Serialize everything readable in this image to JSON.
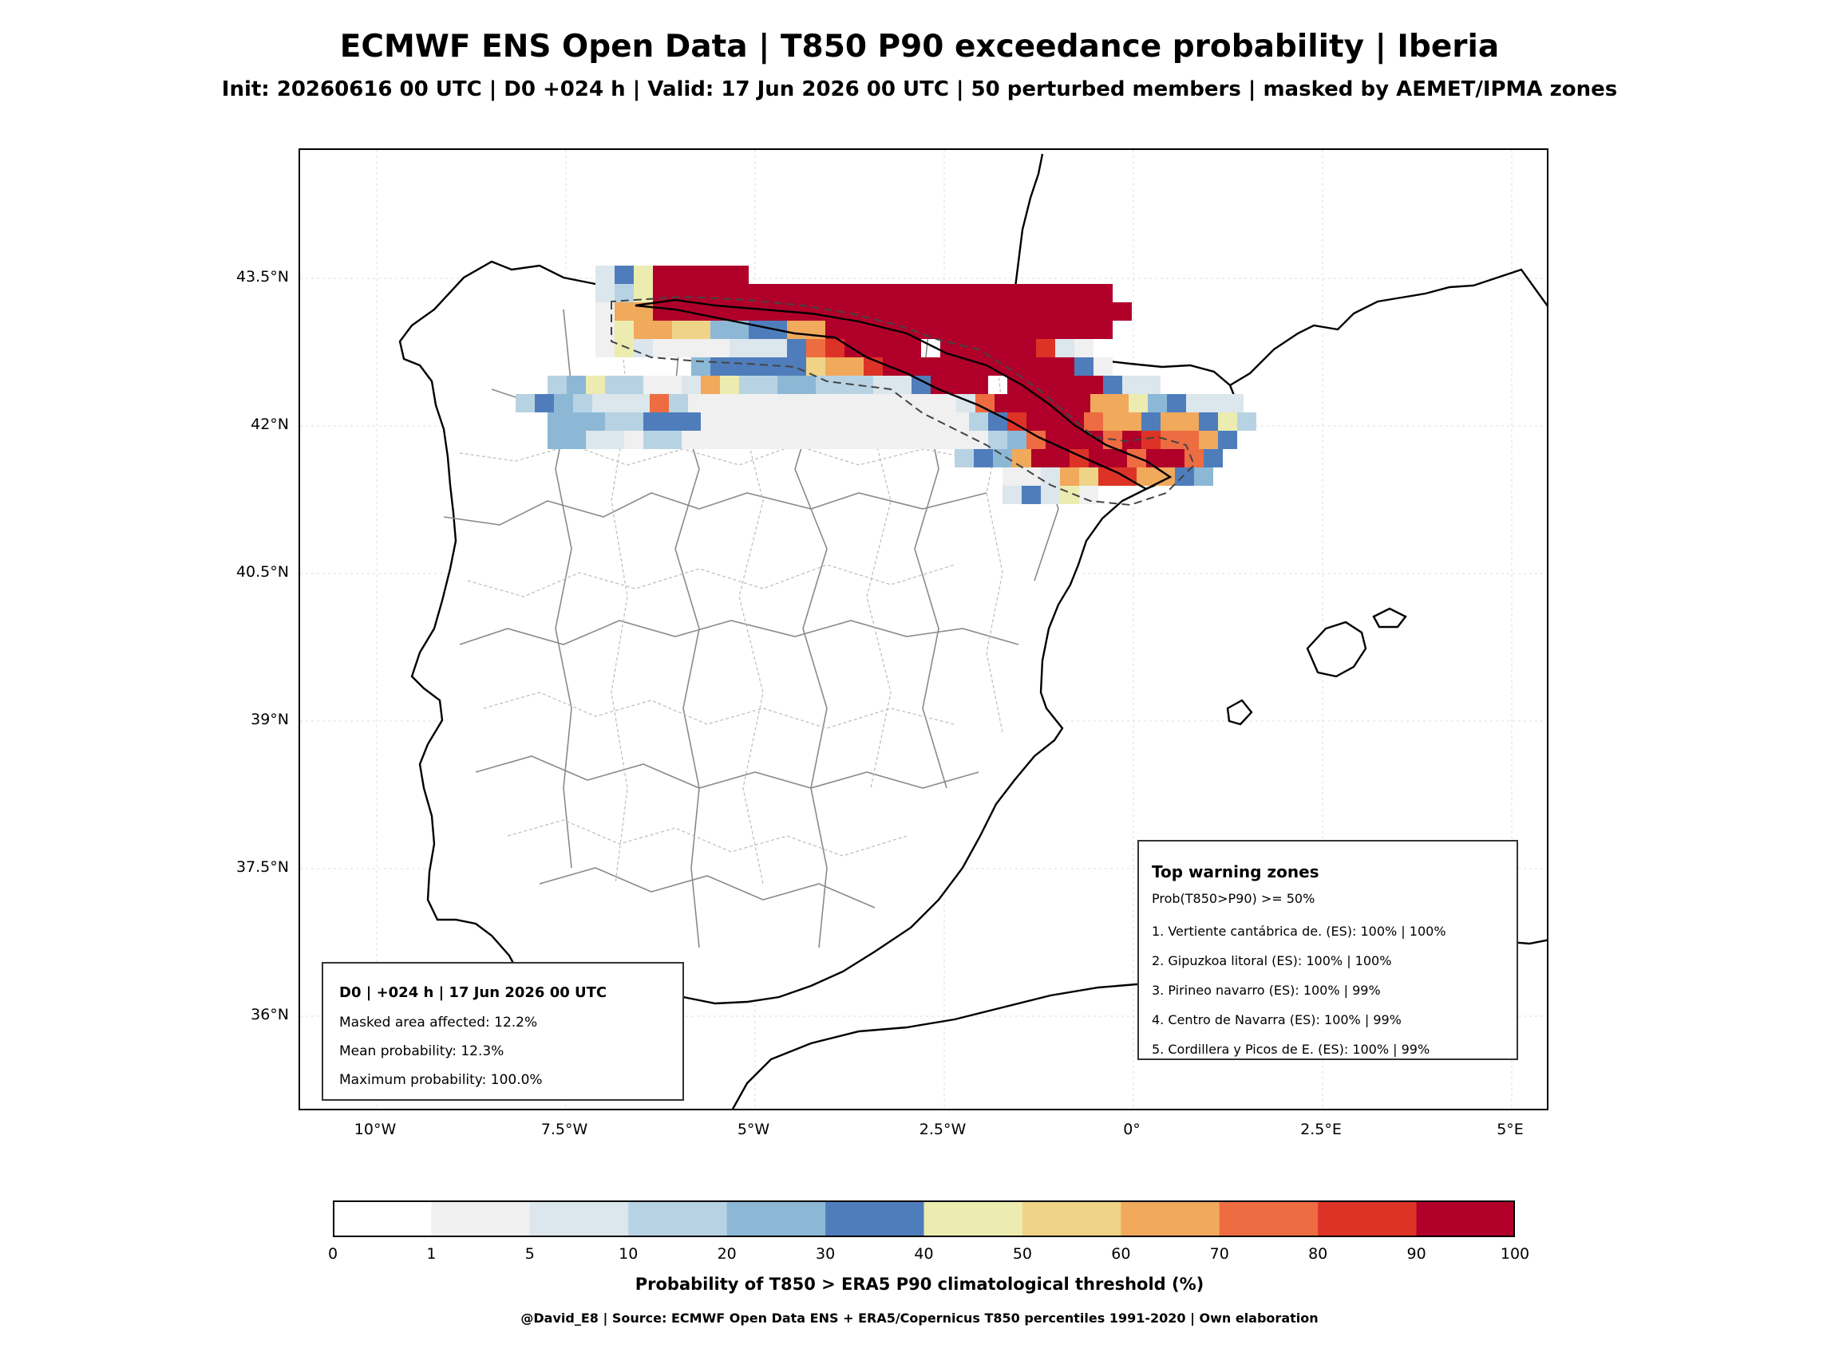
{
  "title": "ECMWF ENS Open Data | T850 P90 exceedance probability | Iberia",
  "subtitle": "Init: 20260616 00 UTC | D0 +024 h | Valid: 17 Jun 2026 00 UTC | 50 perturbed members | masked by AEMET/IPMA zones",
  "map": {
    "lat_ticks": [
      "43.5°N",
      "42°N",
      "40.5°N",
      "39°N",
      "37.5°N",
      "36°N"
    ],
    "lon_ticks": [
      "10°W",
      "7.5°W",
      "5°W",
      "2.5°W",
      "0°",
      "2.5°E",
      "5°E"
    ]
  },
  "info_box": {
    "heading": "D0 | +024 h | 17 Jun 2026 00 UTC",
    "lines": [
      "Masked area affected: 12.2%",
      "Mean probability: 12.3%",
      "Maximum probability: 100.0%"
    ]
  },
  "warning_box": {
    "heading": "Top warning zones",
    "subheading": "Prob(T850>P90) >= 50%",
    "items": [
      "1. Vertiente cantábrica de. (ES): 100% | 100%",
      "2. Gipuzkoa litoral (ES): 100% | 100%",
      "3. Pirineo navarro (ES): 100% | 99%",
      "4. Centro de Navarra (ES): 100% | 99%",
      "5. Cordillera y Picos de E. (ES): 100% | 99%"
    ]
  },
  "colorbar": {
    "ticks": [
      "0",
      "1",
      "5",
      "10",
      "20",
      "30",
      "40",
      "50",
      "60",
      "70",
      "80",
      "90",
      "100"
    ],
    "colors": [
      "#ffffff",
      "#f0f0f0",
      "#dbe6ed",
      "#b7d3e3",
      "#8cb8d6",
      "#4f7dbc",
      "#ececb0",
      "#efd488",
      "#f1a95c",
      "#ee6c41",
      "#dd3327",
      "#b0002a"
    ],
    "label": "Probability of T850 > ERA5 P90 climatological threshold (%)"
  },
  "credit": "@David_E8 | Source: ECMWF Open Data ENS + ERA5/Copernicus T850 percentiles 1991-2020 | Own elaboration"
}
